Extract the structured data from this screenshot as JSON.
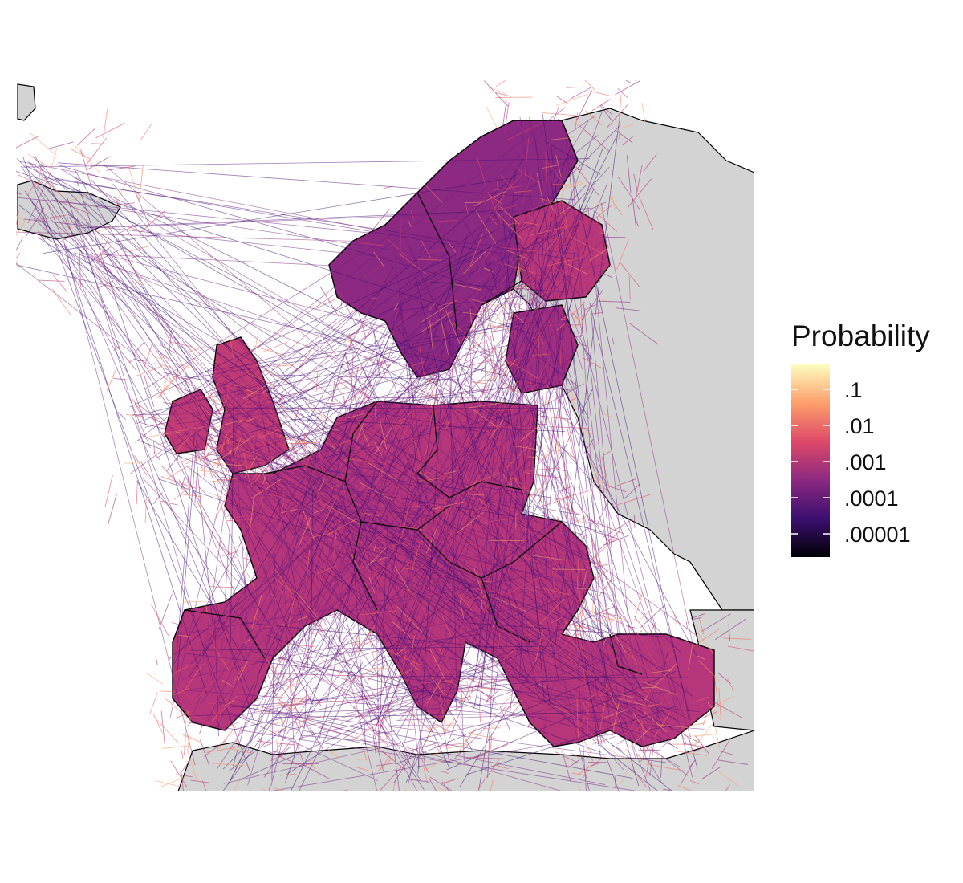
{
  "map": {
    "background_land": "#d3d3d3",
    "background_sea": "#ffffff",
    "border_color": "#000000",
    "palette": "magma"
  },
  "legend": {
    "title": "Probability",
    "labels": [
      ".1",
      ".01",
      ".001",
      ".0001",
      ".00001"
    ],
    "scale": "log10",
    "gradient": [
      "#000004",
      "#3b0f70",
      "#8c2981",
      "#de4968",
      "#fe9f6d",
      "#fcfdbf"
    ]
  }
}
